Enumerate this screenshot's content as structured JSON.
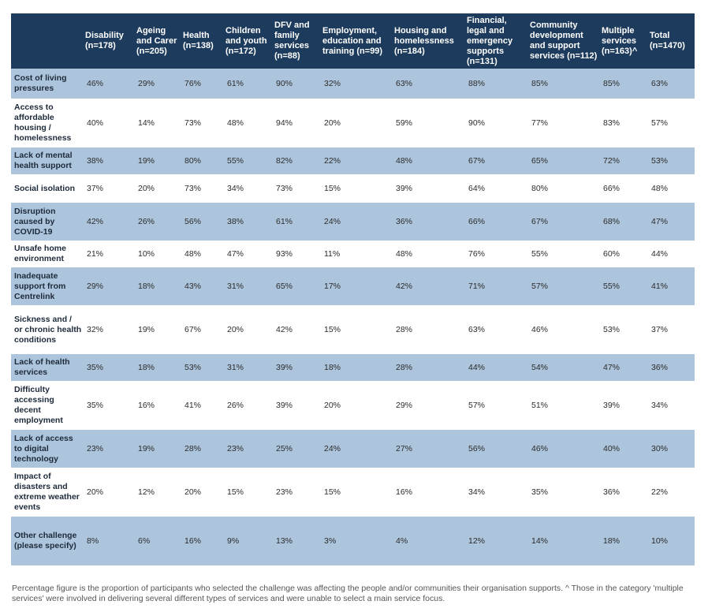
{
  "columns": [
    "",
    "Disability (n=178)",
    "Ageing and Carer (n=205)",
    "Health (n=138)",
    "Children and youth (n=172)",
    "DFV and family services (n=88)",
    "Employment, education and training (n=99)",
    "Housing and homelessness (n=184)",
    "Financial, legal and emergency supports (n=131)",
    "Community development and support services (n=112)",
    "Multiple services (n=163)^",
    "Total (n=1470)"
  ],
  "rows": [
    {
      "label": "Cost of living pressures",
      "values": [
        "46%",
        "29%",
        "76%",
        "61%",
        "90%",
        "32%",
        "63%",
        "88%",
        "85%",
        "85%",
        "63%"
      ]
    },
    {
      "label": "Access to affordable housing / homelessness",
      "values": [
        "40%",
        "14%",
        "73%",
        "48%",
        "94%",
        "20%",
        "59%",
        "90%",
        "77%",
        "83%",
        "57%"
      ]
    },
    {
      "label": "Lack of mental health support",
      "values": [
        "38%",
        "19%",
        "80%",
        "55%",
        "82%",
        "22%",
        "48%",
        "67%",
        "65%",
        "72%",
        "53%"
      ]
    },
    {
      "label": "Social isolation",
      "values": [
        "37%",
        "20%",
        "73%",
        "34%",
        "73%",
        "15%",
        "39%",
        "64%",
        "80%",
        "66%",
        "48%"
      ]
    },
    {
      "label": "Disruption caused by COVID-19",
      "values": [
        "42%",
        "26%",
        "56%",
        "38%",
        "61%",
        "24%",
        "36%",
        "66%",
        "67%",
        "68%",
        "47%"
      ]
    },
    {
      "label": "Unsafe home environment",
      "values": [
        "21%",
        "10%",
        "48%",
        "47%",
        "93%",
        "11%",
        "48%",
        "76%",
        "55%",
        "60%",
        "44%"
      ]
    },
    {
      "label": "Inadequate support from Centrelink",
      "values": [
        "29%",
        "18%",
        "43%",
        "31%",
        "65%",
        "17%",
        "42%",
        "71%",
        "57%",
        "55%",
        "41%"
      ]
    },
    {
      "label": "Sickness and / or chronic health conditions",
      "values": [
        "32%",
        "19%",
        "67%",
        "20%",
        "42%",
        "15%",
        "28%",
        "63%",
        "46%",
        "53%",
        "37%"
      ]
    },
    {
      "label": "Lack of health services",
      "values": [
        "35%",
        "18%",
        "53%",
        "31%",
        "39%",
        "18%",
        "28%",
        "44%",
        "54%",
        "47%",
        "36%"
      ]
    },
    {
      "label": "Difficulty accessing decent employment",
      "values": [
        "35%",
        "16%",
        "41%",
        "26%",
        "39%",
        "20%",
        "29%",
        "57%",
        "51%",
        "39%",
        "34%"
      ]
    },
    {
      "label": "Lack of access to digital technology",
      "values": [
        "23%",
        "19%",
        "28%",
        "23%",
        "25%",
        "24%",
        "27%",
        "56%",
        "46%",
        "40%",
        "30%"
      ]
    },
    {
      "label": "Impact of disasters and extreme weather events",
      "values": [
        "20%",
        "12%",
        "20%",
        "15%",
        "23%",
        "15%",
        "16%",
        "34%",
        "35%",
        "36%",
        "22%"
      ]
    },
    {
      "label": "Other challenge (please specify)",
      "values": [
        "8%",
        "6%",
        "16%",
        "9%",
        "13%",
        "3%",
        "4%",
        "12%",
        "14%",
        "18%",
        "10%"
      ]
    }
  ],
  "footnote": "Percentage figure is the proportion of participants who selected the challenge was affecting the people and/or communities their organisation supports. ^ Those in the category 'multiple services' were involved in delivering several different types of services and were unable to select a main service focus.",
  "colors": {
    "header": "#1d3b5c",
    "shaded_row": "#adc5dc",
    "plain_row": "#ffffff"
  }
}
